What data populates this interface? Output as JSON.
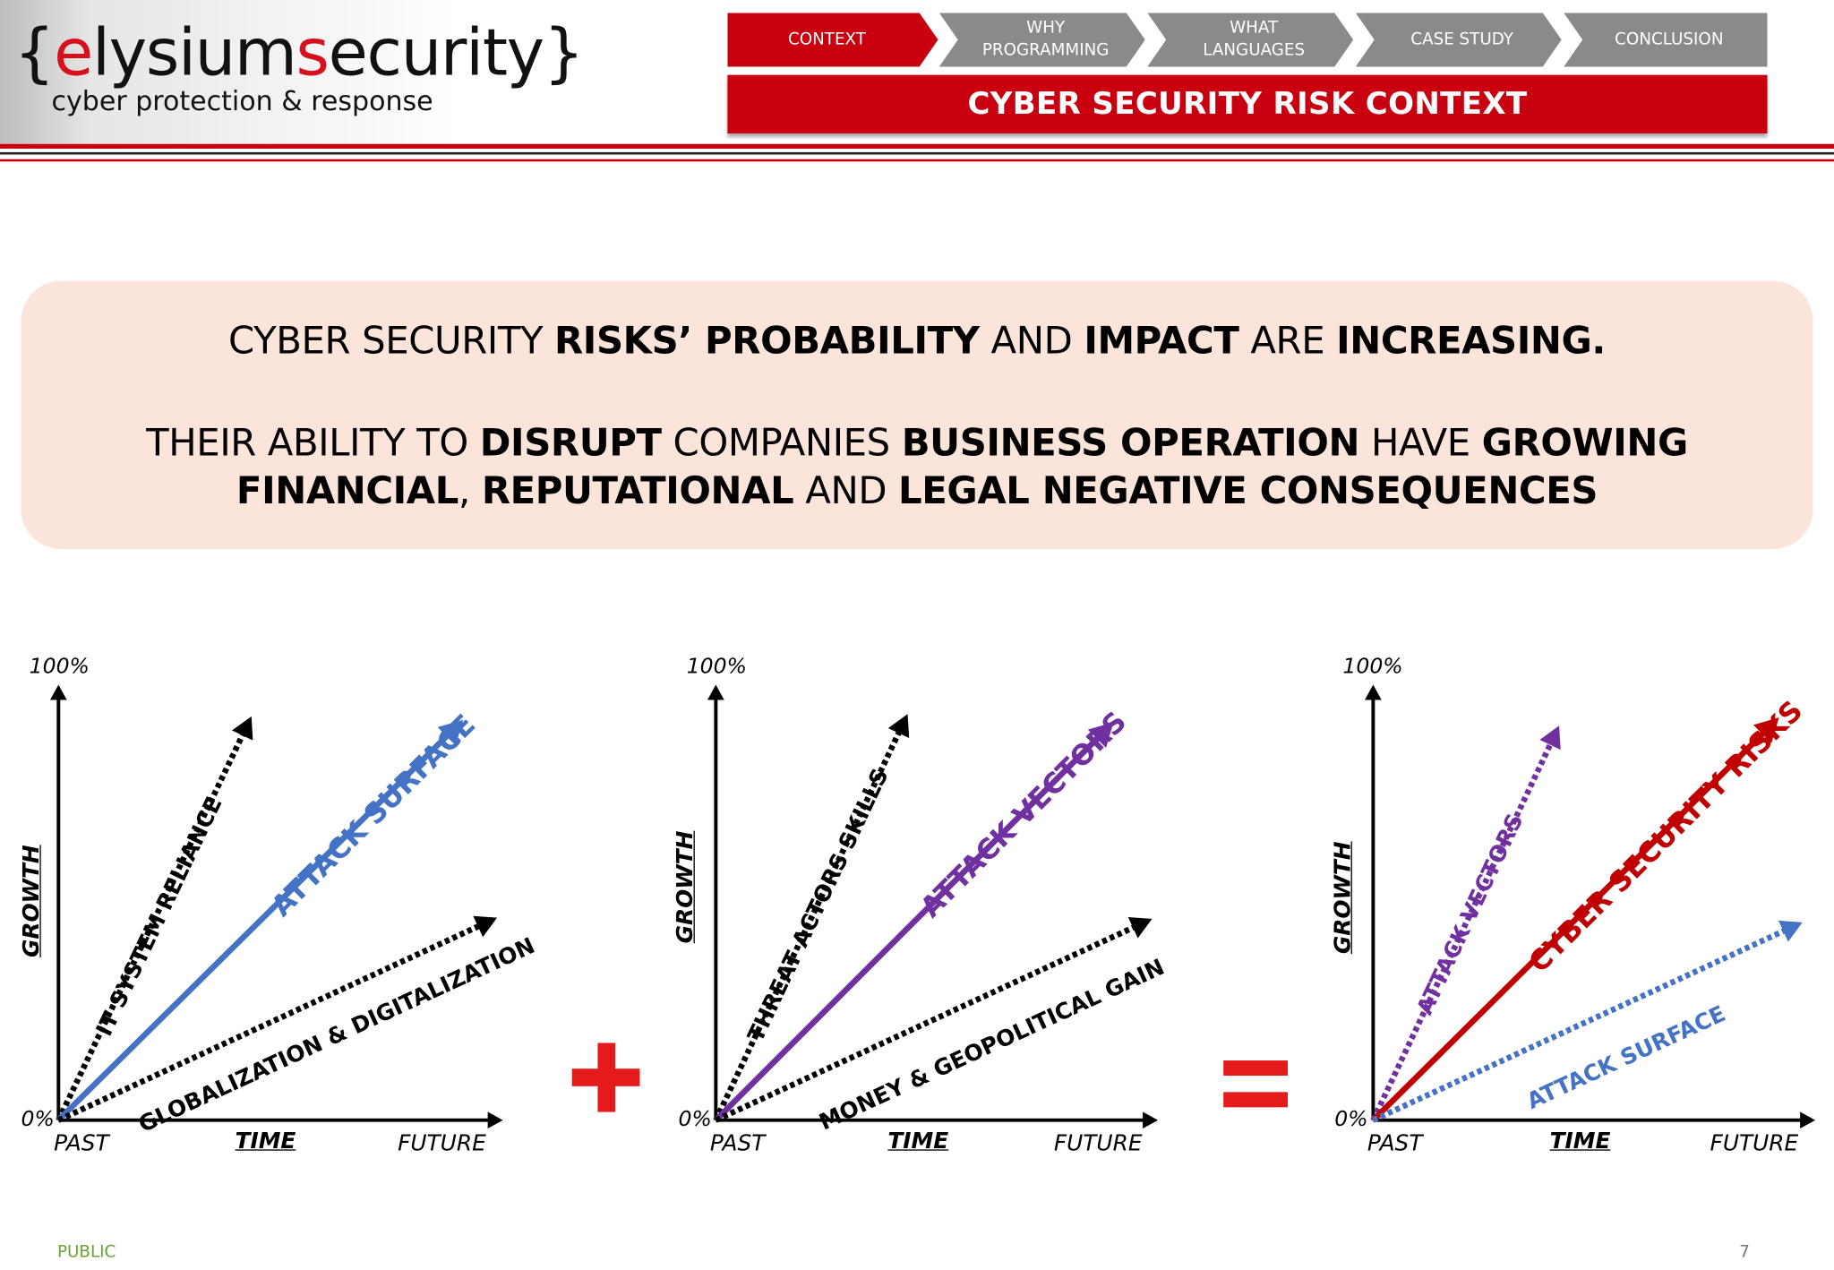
{
  "logo": {
    "brace_open": "{",
    "brand_plain_1": "",
    "brand_red_1": "e",
    "brand_plain_2": "lysium",
    "brand_red_2": "s",
    "brand_plain_3": "ecurity",
    "brace_close": "}",
    "tagline": "cyber protection & response"
  },
  "nav": {
    "tabs": [
      {
        "label": "CONTEXT",
        "active": true
      },
      {
        "label": "WHY\nPROGRAMMING",
        "active": false
      },
      {
        "label": "WHAT\nLANGUAGES",
        "active": false
      },
      {
        "label": "CASE STUDY",
        "active": false
      },
      {
        "label": "CONCLUSION",
        "active": false
      }
    ],
    "section_title": "CYBER SECURITY RISK CONTEXT"
  },
  "statement": {
    "line1": [
      {
        "t": "CYBER SECURITY ",
        "b": false
      },
      {
        "t": "RISKS’ PROBABILITY",
        "b": true
      },
      {
        "t": " AND ",
        "b": false
      },
      {
        "t": "IMPACT",
        "b": true
      },
      {
        "t": " ARE ",
        "b": false
      },
      {
        "t": "INCREASING.",
        "b": true
      }
    ],
    "line2": [
      {
        "t": "THEIR ABILITY TO ",
        "b": false
      },
      {
        "t": "DISRUPT",
        "b": true
      },
      {
        "t": " COMPANIES ",
        "b": false
      },
      {
        "t": "BUSINESS OPERATION",
        "b": true
      },
      {
        "t": " HAVE ",
        "b": false
      },
      {
        "t": "GROWING",
        "b": true
      }
    ],
    "line3": [
      {
        "t": "FINANCIAL",
        "b": true
      },
      {
        "t": ", ",
        "b": false
      },
      {
        "t": "REPUTATIONAL",
        "b": true
      },
      {
        "t": " AND ",
        "b": false
      },
      {
        "t": "LEGAL NEGATIVE CONSEQUENCES",
        "b": true
      }
    ]
  },
  "diagrams": [
    {
      "y_top": "100%",
      "y_bottom": "0%",
      "y_axis": "GROWTH",
      "x_left": "PAST",
      "x_axis": "TIME",
      "x_right": "FUTURE",
      "arrows": [
        {
          "label": "IT SYSTEM RELIANCE",
          "style": "dotted",
          "color": "#000000"
        },
        {
          "label": "ATTACK SURFACE",
          "style": "solid",
          "color": "#4472c4"
        },
        {
          "label": "GLOBALIZATION & DIGITALIZATION",
          "style": "dotted",
          "color": "#000000"
        }
      ]
    },
    {
      "y_top": "100%",
      "y_bottom": "0%",
      "y_axis": "GROWTH",
      "x_left": "PAST",
      "x_axis": "TIME",
      "x_right": "FUTURE",
      "arrows": [
        {
          "label": "THREAT ACTORS SKILLS",
          "style": "dotted",
          "color": "#000000"
        },
        {
          "label": "ATTACK VECTORS",
          "style": "solid",
          "color": "#7030a0"
        },
        {
          "label": "MONEY & GEOPOLITICAL GAIN",
          "style": "dotted",
          "color": "#000000"
        }
      ]
    },
    {
      "y_top": "100%",
      "y_bottom": "0%",
      "y_axis": "GROWTH",
      "x_left": "PAST",
      "x_axis": "TIME",
      "x_right": "FUTURE",
      "arrows": [
        {
          "label": "ATTACK VECTORS",
          "style": "dotted",
          "color": "#7030a0"
        },
        {
          "label": "CYBER SECURITY RISKS",
          "style": "solid",
          "color": "#c00000"
        },
        {
          "label": "ATTACK SURFACE",
          "style": "dotted",
          "color": "#4472c4"
        }
      ]
    }
  ],
  "operators": {
    "plus": "+",
    "equals": "=",
    "color": "#e51a1a"
  },
  "footer": {
    "classification": "PUBLIC",
    "page_number": "7"
  }
}
